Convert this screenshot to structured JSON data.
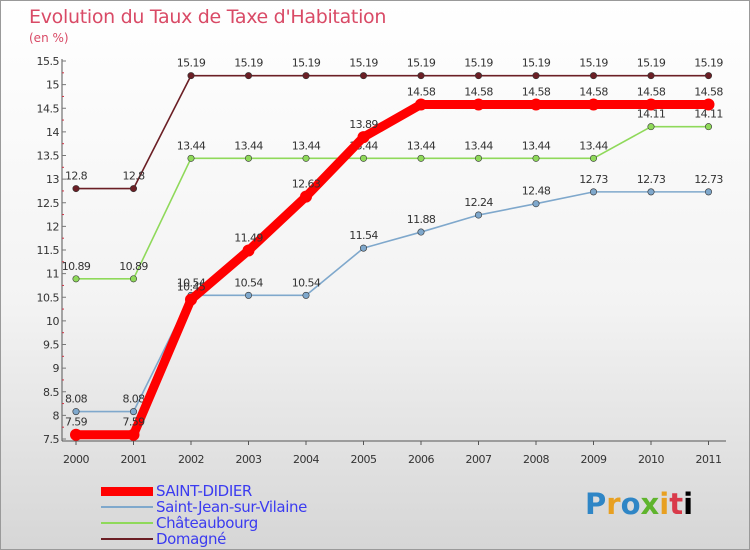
{
  "title": "Evolution du Taux de Taxe d'Habitation",
  "subtitle": "(en %)",
  "logo": {
    "text": "Proxiti"
  },
  "chart_data": {
    "type": "line",
    "x": [
      "2000",
      "2001",
      "2002",
      "2003",
      "2004",
      "2005",
      "2006",
      "2007",
      "2008",
      "2009",
      "2010",
      "2011"
    ],
    "y_ticks": [
      "7.5",
      "8",
      "8.5",
      "9",
      "9.5",
      "10",
      "10.5",
      "11",
      "11.5",
      "12",
      "12.5",
      "13",
      "13.5",
      "14",
      "14.5",
      "15",
      "15.5"
    ],
    "ylim": [
      7.5,
      15.5
    ],
    "grid": false,
    "legend_position": "bottom-left",
    "series": [
      {
        "name": "Domagné",
        "color": "#6b1f25",
        "values": [
          12.8,
          12.8,
          15.19,
          15.19,
          15.19,
          15.19,
          15.19,
          15.19,
          15.19,
          15.19,
          15.19,
          15.19
        ],
        "labels": [
          "12.8",
          "12.8",
          "15.19",
          "15.19",
          "15.19",
          "15.19",
          "15.19",
          "15.19",
          "15.19",
          "15.19",
          "15.19",
          "15.19"
        ]
      },
      {
        "name": "Châteaubourg",
        "color": "#8fd95a",
        "values": [
          10.89,
          10.89,
          13.44,
          13.44,
          13.44,
          13.44,
          13.44,
          13.44,
          13.44,
          13.44,
          14.11,
          14.11
        ],
        "labels": [
          "10.89",
          "10.89",
          "13.44",
          "13.44",
          "13.44",
          "13.44",
          "13.44",
          "13.44",
          "13.44",
          "13.44",
          "14.11",
          "14.11"
        ]
      },
      {
        "name": "Saint-Jean-sur-Vilaine",
        "color": "#7fa8cc",
        "values": [
          8.08,
          8.08,
          10.54,
          10.54,
          10.54,
          11.54,
          11.88,
          12.24,
          12.48,
          12.73,
          12.73,
          12.73
        ],
        "labels": [
          "8.08",
          "8.08",
          "10.54",
          "10.54",
          "10.54",
          "11.54",
          "11.88",
          "12.24",
          "12.48",
          "12.73",
          "12.73",
          "12.73"
        ]
      },
      {
        "name": "SAINT-DIDIER",
        "color": "#ff0000",
        "values": [
          7.59,
          7.59,
          10.45,
          11.49,
          12.63,
          13.89,
          14.58,
          14.58,
          14.58,
          14.58,
          14.58,
          14.58
        ],
        "labels": [
          "7.59",
          "7.59",
          "10.45",
          "11.49",
          "12.63",
          "13.89",
          "14.58",
          "14.58",
          "14.58",
          "14.58",
          "14.58",
          "14.58"
        ]
      }
    ]
  }
}
